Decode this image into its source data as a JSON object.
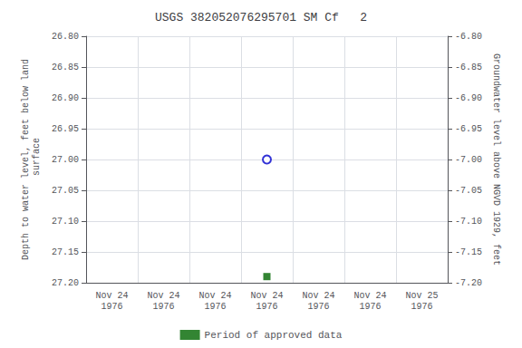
{
  "chart_data": {
    "type": "scatter",
    "title": "USGS 382052076295701 SM Cf   2",
    "ylabel": "Depth to water level, feet below land\n surface",
    "y2label": "Groundwater level above NGVD 1929, feet",
    "categories": [
      "Nov 24\n1976",
      "Nov 24\n1976",
      "Nov 24\n1976",
      "Nov 24\n1976",
      "Nov 24\n1976",
      "Nov 24\n1976",
      "Nov 25\n1976"
    ],
    "series": [
      {
        "color": "#0000cc",
        "marker": "open_circle",
        "values": [
          null,
          null,
          null,
          27.0,
          null,
          null,
          null
        ]
      },
      {
        "name": "Period of approved data",
        "color": "#006600",
        "marker": "square",
        "values": [
          null,
          null,
          null,
          27.19,
          null,
          null,
          null
        ]
      }
    ],
    "ylim": [
      26.8,
      27.2
    ],
    "yticks": [
      {
        "value": 26.8,
        "label": "26.80"
      },
      {
        "value": 26.85,
        "label": "26.85"
      },
      {
        "value": 26.9,
        "label": "26.90"
      },
      {
        "value": 26.95,
        "label": "26.95"
      },
      {
        "value": 27.0,
        "label": "27.00"
      },
      {
        "value": 27.05,
        "label": "27.05"
      },
      {
        "value": 27.1,
        "label": "27.10"
      },
      {
        "value": 27.15,
        "label": "27.15"
      },
      {
        "value": 27.2,
        "label": "27.20"
      }
    ],
    "y2lim": [
      -7.2,
      -6.8
    ],
    "y2ticks": [
      {
        "value": -6.8,
        "label": "-6.80"
      },
      {
        "value": -6.85,
        "label": "-6.85"
      },
      {
        "value": -6.9,
        "label": "-6.90"
      },
      {
        "value": -6.95,
        "label": "-6.95"
      },
      {
        "value": -7.0,
        "label": "-7.00"
      },
      {
        "value": -7.05,
        "label": "-7.05"
      },
      {
        "value": -7.1,
        "label": "-7.10"
      },
      {
        "value": -7.15,
        "label": "-7.15"
      },
      {
        "value": -7.2,
        "label": "-7.20"
      }
    ],
    "grid": true,
    "legend": "bottom"
  }
}
